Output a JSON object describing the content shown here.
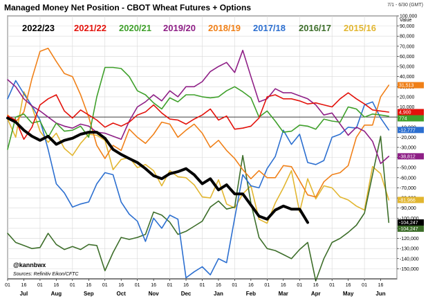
{
  "title": "Managed Money Net Position - CBOT Wheat Futures + Options",
  "period": "7/1 - 6/30 (GMT)",
  "unit_label": "Value",
  "handle": "@kannbwx",
  "source": "Sources: Refinitiv Eikon/CFTC",
  "chart_data": {
    "type": "line",
    "title": "Managed Money Net Position - CBOT Wheat Futures + Options",
    "ylabel": "Value",
    "ylim": [
      -160000,
      100000
    ],
    "yticks": [
      100000,
      90000,
      80000,
      70000,
      60000,
      50000,
      40000,
      30000,
      20000,
      10000,
      0,
      -10000,
      -20000,
      -30000,
      -40000,
      -50000,
      -60000,
      -70000,
      -80000,
      -90000,
      -100000,
      -110000,
      -120000,
      -130000,
      -140000,
      -150000
    ],
    "ytick_labels": [
      "100,000",
      "90,000",
      "80,000",
      "70,000",
      "60,000",
      "50,000",
      "40,000",
      "30,000",
      "20,000",
      "10,000",
      "0",
      "-10,000",
      "-20,000",
      "-30,000",
      "-40,000",
      "-50,000",
      "-60,000",
      "-70,000",
      "-80,000",
      "-90,000",
      "-100,000",
      "-110,000",
      "-120,000",
      "-130,000",
      "-140,000",
      "-150,000"
    ],
    "x_ticks": [
      "01",
      "16",
      "01",
      "16",
      "01",
      "16",
      "01",
      "16",
      "01",
      "16",
      "01",
      "16",
      "01",
      "16",
      "01",
      "16",
      "01",
      "16",
      "01",
      "16",
      "01",
      "16",
      "01",
      "16"
    ],
    "x_months": [
      "Jul",
      "Aug",
      "Sep",
      "Oct",
      "Nov",
      "Dec",
      "Jan",
      "Feb",
      "Mar",
      "Apr",
      "May",
      "Jun"
    ],
    "series": [
      {
        "name": "2022/23",
        "color": "#000000",
        "width": 4,
        "end_label": "-104,247",
        "x": [
          0,
          0.25,
          0.5,
          0.75,
          1,
          1.25,
          1.5,
          1.75,
          2,
          2.25,
          2.5,
          2.75,
          3,
          3.25,
          3.5,
          3.75,
          4,
          4.25,
          4.5,
          4.75,
          5,
          5.25,
          5.5,
          5.75,
          6,
          6.25,
          6.5,
          6.75,
          7,
          7.25,
          7.5,
          7.75,
          8,
          8.25,
          8.5,
          8.75,
          9,
          9.25
        ],
        "y": [
          -1000,
          -5000,
          -13000,
          -19000,
          -23000,
          -19000,
          -27000,
          -23000,
          -21000,
          -17000,
          -15000,
          -15000,
          -21000,
          -32000,
          -37000,
          -41000,
          -45000,
          -51000,
          -58000,
          -61000,
          -56000,
          -54000,
          -51000,
          -57000,
          -66000,
          -61000,
          -72000,
          -67000,
          -76000,
          -76000,
          -87000,
          -98000,
          -101000,
          -92000,
          -88000,
          -91000,
          -91000,
          -104247
        ]
      },
      {
        "name": "2021/22",
        "color": "#e3120b",
        "width": 1.6,
        "end_label": "4,900",
        "x": [
          0,
          0.25,
          0.5,
          0.75,
          1,
          1.25,
          1.5,
          1.75,
          2,
          2.25,
          2.5,
          2.75,
          3,
          3.25,
          3.5,
          3.75,
          4,
          4.25,
          4.5,
          4.75,
          5,
          5.25,
          5.5,
          5.75,
          6,
          6.25,
          6.5,
          6.75,
          7,
          7.25,
          7.5,
          7.75,
          8,
          8.25,
          8.5,
          8.75,
          9,
          9.25,
          9.5,
          9.75,
          10,
          10.25,
          10.5,
          10.75,
          11,
          11.25,
          11.5,
          11.75
        ],
        "y": [
          1000,
          -3000,
          -22000,
          -10000,
          12000,
          18000,
          22000,
          6000,
          -1000,
          7000,
          2000,
          -3000,
          -10000,
          -6000,
          -9000,
          -5000,
          2000,
          5000,
          12000,
          4000,
          -2000,
          -3000,
          -7000,
          -2000,
          2000,
          8000,
          -3000,
          1000,
          -12000,
          -11000,
          -9000,
          -1000,
          20000,
          22000,
          18000,
          18000,
          16000,
          13000,
          14000,
          12000,
          10000,
          18000,
          24000,
          18000,
          13000,
          7000,
          6000,
          4900
        ]
      },
      {
        "name": "2020/21",
        "color": "#3fa02b",
        "width": 1.6,
        "end_label": "774",
        "x": [
          0,
          0.25,
          0.5,
          0.75,
          1,
          1.25,
          1.5,
          1.75,
          2,
          2.25,
          2.5,
          2.75,
          3,
          3.25,
          3.5,
          3.75,
          4,
          4.25,
          4.5,
          4.75,
          5,
          5.25,
          5.5,
          5.75,
          6,
          6.25,
          6.5,
          6.75,
          7,
          7.25,
          7.5,
          7.75,
          8,
          8.25,
          8.5,
          8.75,
          9,
          9.25,
          9.5,
          9.75,
          10,
          10.25,
          10.5,
          10.75,
          11,
          11.25,
          11.5,
          11.75
        ],
        "y": [
          -32000,
          0,
          3000,
          -6000,
          -4000,
          -20000,
          -6000,
          -14000,
          -13000,
          -9000,
          -20000,
          20000,
          49000,
          49000,
          48000,
          40000,
          26000,
          22000,
          14000,
          8000,
          19000,
          15000,
          22000,
          22000,
          20000,
          19000,
          20000,
          26000,
          30000,
          25000,
          19000,
          0,
          6000,
          -4000,
          -15000,
          -14000,
          -8000,
          -9000,
          -12000,
          -2000,
          -4000,
          -5000,
          10000,
          8000,
          0,
          3000,
          2000,
          774
        ]
      },
      {
        "name": "2019/20",
        "color": "#8e1f86",
        "width": 1.6,
        "end_label": "-38,812",
        "x": [
          0,
          0.25,
          0.5,
          0.75,
          1,
          1.25,
          1.5,
          1.75,
          2,
          2.25,
          2.5,
          2.75,
          3,
          3.25,
          3.5,
          3.75,
          4,
          4.25,
          4.5,
          4.75,
          5,
          5.25,
          5.5,
          5.75,
          6,
          6.25,
          6.5,
          6.75,
          7,
          7.25,
          7.5,
          7.75,
          8,
          8.25,
          8.5,
          8.75,
          9,
          9.25,
          9.5,
          9.75,
          10,
          10.25,
          10.5,
          10.75,
          11,
          11.25,
          11.5,
          11.75
        ],
        "y": [
          37000,
          30000,
          18000,
          11000,
          6000,
          0,
          -6000,
          -9000,
          -11000,
          -7000,
          -9000,
          -15000,
          -16000,
          -19000,
          -22000,
          -4000,
          10000,
          15000,
          22000,
          16000,
          26000,
          20000,
          30000,
          30000,
          35000,
          45000,
          50000,
          54000,
          44000,
          66000,
          40000,
          15000,
          18000,
          28000,
          24000,
          24000,
          21000,
          18000,
          12000,
          2000,
          4000,
          -7000,
          -18000,
          -10000,
          -14000,
          -24000,
          -46000,
          -38812
        ]
      },
      {
        "name": "2018/19",
        "color": "#f08018",
        "width": 1.6,
        "end_label": "31,513",
        "x": [
          0,
          0.25,
          0.5,
          0.75,
          1,
          1.25,
          1.5,
          1.75,
          2,
          2.25,
          2.5,
          2.75,
          3,
          3.25,
          3.5,
          3.75,
          4,
          4.25,
          4.5,
          4.75,
          5,
          5.25,
          5.5,
          5.75,
          6,
          6.25,
          6.5,
          6.75,
          7,
          7.25,
          7.5,
          7.75,
          8,
          8.25,
          8.5,
          8.75,
          9,
          9.25,
          9.5,
          9.75,
          10,
          10.25,
          10.5,
          10.75,
          11,
          11.25,
          11.5,
          11.75
        ],
        "y": [
          2000,
          -5000,
          5000,
          38000,
          65000,
          68000,
          55000,
          43000,
          40000,
          22000,
          0,
          -28000,
          -41000,
          -28000,
          -33000,
          -12000,
          -20000,
          -26000,
          -17000,
          -5000,
          -7000,
          -20000,
          -13000,
          -7000,
          -16000,
          -30000,
          -23000,
          -33000,
          -41000,
          -52000,
          -61000,
          -53000,
          -60000,
          -60000,
          -48000,
          -49000,
          -63000,
          -77000,
          -79000,
          -64000,
          -57000,
          -55000,
          -48000,
          -20000,
          -8000,
          -8000,
          20000,
          31513
        ]
      },
      {
        "name": "2017/18",
        "color": "#2c6fd0",
        "width": 1.6,
        "end_label": "-12,777",
        "x": [
          0,
          0.25,
          0.5,
          0.75,
          1,
          1.25,
          1.5,
          1.75,
          2,
          2.25,
          2.5,
          2.75,
          3,
          3.25,
          3.5,
          3.75,
          4,
          4.25,
          4.5,
          4.75,
          5,
          5.25,
          5.5,
          5.75,
          6,
          6.25,
          6.5,
          6.75,
          7,
          7.25,
          7.5,
          7.75,
          8,
          8.25,
          8.5,
          8.75,
          9,
          9.25,
          9.5,
          9.75,
          10,
          10.25,
          10.5,
          10.75,
          11,
          11.25,
          11.5,
          11.75
        ],
        "y": [
          18000,
          36000,
          23000,
          11000,
          -3000,
          -32000,
          -66000,
          -75000,
          -89000,
          -86000,
          -84000,
          -66000,
          -55000,
          -57000,
          -84000,
          -96000,
          -103000,
          -123000,
          -100000,
          -110000,
          -97000,
          -101000,
          -159000,
          -153000,
          -148000,
          -156000,
          -140000,
          -144000,
          -100000,
          -57000,
          -68000,
          -70000,
          -51000,
          -39000,
          -13000,
          -27000,
          -17000,
          -45000,
          -47000,
          -43000,
          -20000,
          -17000,
          -10000,
          -11000,
          12000,
          15000,
          -1000,
          -12777
        ]
      },
      {
        "name": "2016/17",
        "color": "#3d6e2a",
        "width": 1.6,
        "end_label": "-104,247",
        "x": [
          0,
          0.25,
          0.5,
          0.75,
          1,
          1.25,
          1.5,
          1.75,
          2,
          2.25,
          2.5,
          2.75,
          3,
          3.25,
          3.5,
          3.75,
          4,
          4.25,
          4.5,
          4.75,
          5,
          5.25,
          5.5,
          5.75,
          6,
          6.25,
          6.5,
          6.75,
          7,
          7.25,
          7.5,
          7.75,
          8,
          8.25,
          8.5,
          8.75,
          9,
          9.25,
          9.5,
          9.75,
          10,
          10.25,
          10.5,
          10.75,
          11,
          11.25,
          11.5,
          11.75
        ],
        "y": [
          -115000,
          -124000,
          -127000,
          -130000,
          -129000,
          -115000,
          -126000,
          -131000,
          -128000,
          -131000,
          -126000,
          -127000,
          -152000,
          -134000,
          -119000,
          -121000,
          -119000,
          -116000,
          -94000,
          -97000,
          -104000,
          -116000,
          -113000,
          -108000,
          -103000,
          -89000,
          -83000,
          -91000,
          -89000,
          -38000,
          -85000,
          -119000,
          -130000,
          -132000,
          -136000,
          -140000,
          -131000,
          -124000,
          -162000,
          -140000,
          -124000,
          -120000,
          -114000,
          -107000,
          -95000,
          -57000,
          -19000,
          -104247
        ]
      },
      {
        "name": "2015/16",
        "color": "#e2b630",
        "width": 1.6,
        "end_label": "-81,966",
        "x": [
          0,
          0.25,
          0.5,
          0.75,
          1,
          1.25,
          1.5,
          1.75,
          2,
          2.25,
          2.5,
          2.75,
          3,
          3.25,
          3.5,
          3.75,
          4,
          4.25,
          4.5,
          4.75,
          5,
          5.25,
          5.5,
          5.75,
          6,
          6.25,
          6.5,
          6.75,
          7,
          7.25,
          7.5,
          7.75,
          8,
          8.25,
          8.5,
          8.75,
          9,
          9.25,
          9.5,
          9.75,
          10,
          10.25,
          10.5,
          10.75,
          11,
          11.25,
          11.5,
          11.75
        ],
        "y": [
          -2000,
          -20000,
          25000,
          10000,
          -14000,
          -25000,
          -16000,
          -31000,
          -38000,
          -26000,
          -17000,
          -18000,
          -23000,
          -52000,
          -42000,
          -40000,
          -50000,
          -47000,
          -53000,
          -68000,
          -53000,
          -59000,
          -60000,
          -67000,
          -79000,
          -80000,
          -62000,
          -86000,
          -90000,
          -76000,
          -68000,
          -101000,
          -105000,
          -85000,
          -70000,
          -53000,
          -94000,
          -61000,
          -81000,
          -68000,
          -70000,
          -79000,
          -82000,
          -88000,
          -92000,
          -49000,
          -56000,
          -81966
        ]
      }
    ]
  }
}
